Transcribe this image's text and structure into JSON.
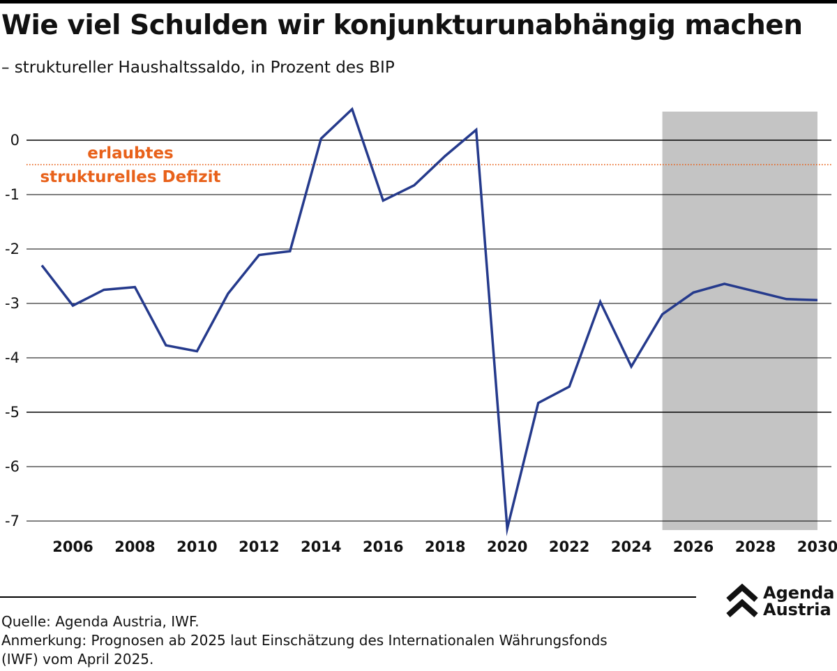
{
  "header": {
    "title": "Wie viel Schulden wir konjunkturunabhängig machen",
    "subtitle": "– struktureller Haushaltssaldo, in Prozent des BIP"
  },
  "chart_data": {
    "type": "line",
    "x": [
      2005,
      2006,
      2007,
      2008,
      2009,
      2010,
      2011,
      2012,
      2013,
      2014,
      2015,
      2016,
      2017,
      2018,
      2019,
      2020,
      2021,
      2022,
      2023,
      2024,
      2025,
      2026,
      2027,
      2028,
      2029,
      2030
    ],
    "series": [
      {
        "values": [
          -2.3,
          -3.04,
          -2.75,
          -2.7,
          -3.77,
          -3.88,
          -2.82,
          -2.11,
          -2.04,
          0.03,
          0.57,
          -1.11,
          -0.83,
          -0.29,
          0.19,
          -7.14,
          -4.83,
          -4.53,
          -2.97,
          -4.16,
          -3.2,
          -2.8,
          -2.64,
          -2.78,
          -2.92,
          -2.94
        ],
        "color": "#253A8C"
      }
    ],
    "xlim": [
      2005,
      2030
    ],
    "ylim": [
      -7,
      0.5
    ],
    "y_ticks": [
      "0",
      "-1",
      "-2",
      "-3",
      "-4",
      "-5",
      "-6",
      "-7"
    ],
    "x_ticks": [
      "2006",
      "2008",
      "2010",
      "2012",
      "2014",
      "2016",
      "2018",
      "2020",
      "2022",
      "2024",
      "2026",
      "2028",
      "2030"
    ],
    "reference_line": {
      "value": -0.45,
      "label_lines": [
        "erlaubtes",
        "strukturelles Defizit"
      ],
      "color": "#E8611A",
      "style": "dotted"
    },
    "forecast_band": {
      "from": 2025,
      "to": 2030,
      "color": "#C4C4C4"
    },
    "grid": true
  },
  "footer": {
    "source": "Quelle: Agenda Austria, IWF.",
    "note_line1": "Anmerkung: Prognosen ab 2025 laut Einschätzung des Internationalen Währungsfonds",
    "note_line2": "(IWF) vom April 2025."
  },
  "logo": {
    "line1": "Agenda",
    "line2": "Austria",
    "icon": "double-chevron-up-icon"
  }
}
